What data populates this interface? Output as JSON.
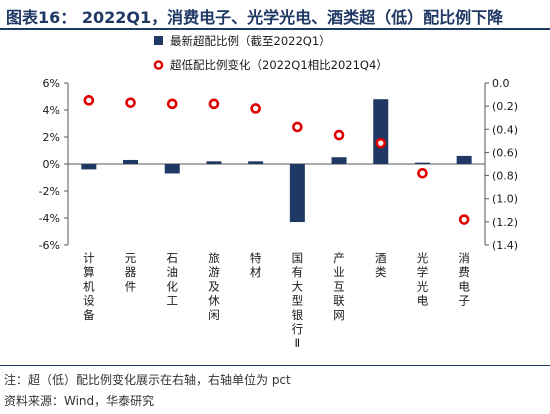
{
  "title": "图表16：  2022Q1，消费电子、光学光电、酒类超（低）配比例下降",
  "footer": {
    "note": "注：超（低）配比例变化展示在右轴，右轴单位为 pct",
    "source": "资料来源：Wind，华泰研究"
  },
  "colors": {
    "bar": "#1f3864",
    "marker": "#e00000"
  },
  "chart_data": {
    "type": "bar",
    "categories": [
      "计算机设备",
      "元器件",
      "石油化工",
      "旅游及休闲",
      "特材",
      "国有大型银行Ⅱ",
      "产业互联网",
      "酒类",
      "光学光电",
      "消费电子"
    ],
    "series": [
      {
        "name": "最新超配比例（截至2022Q1）",
        "type": "bar",
        "axis": "left",
        "values": [
          -0.4,
          0.3,
          -0.7,
          0.2,
          0.2,
          -4.3,
          0.5,
          4.8,
          0.1,
          0.6
        ]
      },
      {
        "name": "超低配比例变化（2022Q1相比2021Q4）",
        "type": "scatter",
        "axis": "right",
        "values": [
          0.15,
          0.17,
          0.18,
          0.18,
          0.22,
          0.38,
          0.45,
          0.52,
          0.78,
          1.18
        ]
      }
    ],
    "left_axis": {
      "ylim": [
        -6,
        6
      ],
      "ticks": [
        "6%",
        "4%",
        "2%",
        "0%",
        "-2%",
        "-4%",
        "-6%"
      ]
    },
    "right_axis": {
      "ylim": [
        0.0,
        1.4
      ],
      "reversed": true,
      "ticks": [
        "0.0",
        "(0.2)",
        "(0.4)",
        "(0.6)",
        "(0.8)",
        "(1.0)",
        "(1.2)",
        "(1.4)"
      ]
    },
    "legend_position": "top-center"
  }
}
